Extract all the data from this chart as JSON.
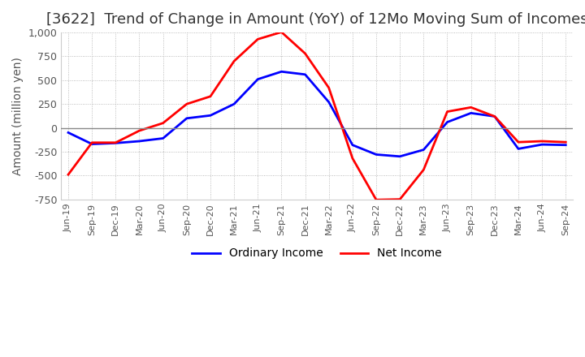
{
  "title": "[3622]  Trend of Change in Amount (YoY) of 12Mo Moving Sum of Incomes",
  "ylabel": "Amount (million yen)",
  "x_labels": [
    "Jun-19",
    "Sep-19",
    "Dec-19",
    "Mar-20",
    "Jun-20",
    "Sep-20",
    "Dec-20",
    "Mar-21",
    "Jun-21",
    "Sep-21",
    "Dec-21",
    "Mar-22",
    "Jun-22",
    "Sep-22",
    "Dec-22",
    "Mar-23",
    "Jun-23",
    "Sep-23",
    "Dec-23",
    "Mar-24",
    "Jun-24",
    "Sep-24"
  ],
  "ordinary_income": [
    -50,
    -170,
    -160,
    -140,
    -110,
    100,
    130,
    250,
    510,
    590,
    560,
    270,
    -180,
    -280,
    -300,
    -230,
    60,
    155,
    120,
    -220,
    -175,
    -180
  ],
  "net_income": [
    -490,
    -155,
    -155,
    -30,
    50,
    250,
    330,
    700,
    930,
    1005,
    780,
    420,
    -320,
    -755,
    -750,
    -440,
    170,
    215,
    120,
    -150,
    -140,
    -150
  ],
  "ordinary_color": "#0000ff",
  "net_color": "#ff0000",
  "ylim": [
    -750,
    1000
  ],
  "yticks": [
    -750,
    -500,
    -250,
    0,
    250,
    500,
    750,
    1000
  ],
  "grid_color": "#aaaaaa",
  "background_color": "#ffffff",
  "title_fontsize": 13,
  "axis_fontsize": 10,
  "tick_fontsize": 9,
  "legend_fontsize": 10
}
